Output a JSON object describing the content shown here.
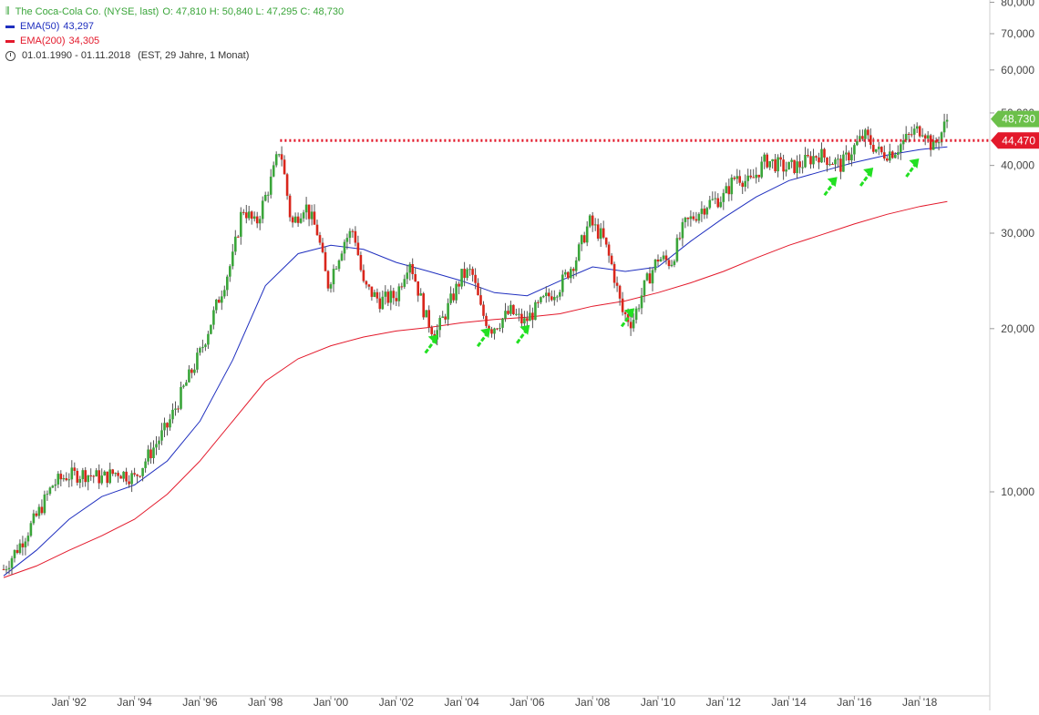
{
  "legend": {
    "title": "The Coca-Cola Co. (NYSE, last)",
    "ohlc": "O: 47,810  H: 50,840  L: 47,295  C: 48,730",
    "ema50_label": "EMA(50)",
    "ema50_value": "43,297",
    "ema200_label": "EMA(200)",
    "ema200_value": "34,305",
    "range": "01.01.1990 - 01.11.2018",
    "range_note": "(EST, 29 Jahre, 1 Monat)"
  },
  "colors": {
    "up": "#3aa53a",
    "down": "#d9261c",
    "ema50": "#1f2fbf",
    "ema200": "#e3192b",
    "resistance": "#e3192b",
    "arrow": "#22e022",
    "badge_price": "#6cc04a",
    "badge_level": "#e3192b"
  },
  "badges": {
    "price": "48,730",
    "level": "44,470"
  },
  "chart_data": {
    "type": "candlestick",
    "title": "The Coca-Cola Co. (NYSE, last)",
    "y_scale": "log",
    "ylim": [
      6.9,
      83
    ],
    "y_ticks": [
      10000,
      20000,
      30000,
      40000,
      50000,
      60000,
      70000,
      80000
    ],
    "y_tick_labels": [
      "10,000",
      "20,000",
      "30,000",
      "40,000",
      "50,000",
      "60,000",
      "70,000",
      "80,000"
    ],
    "x_range": [
      "1990-01",
      "2018-11"
    ],
    "x_tick_labels": [
      "Jan '92",
      "Jan '94",
      "Jan '96",
      "Jan '98",
      "Jan '00",
      "Jan '02",
      "Jan '04",
      "Jan '06",
      "Jan '08",
      "Jan '10",
      "Jan '12",
      "Jan '14",
      "Jan '16",
      "Jan '18"
    ],
    "x_tick_years": [
      1992,
      1994,
      1996,
      1998,
      2000,
      2002,
      2004,
      2006,
      2008,
      2010,
      2012,
      2014,
      2016,
      2018
    ],
    "price_path": [
      [
        1990.0,
        7.2
      ],
      [
        1990.5,
        8.0
      ],
      [
        1991.0,
        9.0
      ],
      [
        1991.5,
        10.3
      ],
      [
        1991.9,
        10.7
      ],
      [
        1992.5,
        10.8
      ],
      [
        1993.0,
        10.6
      ],
      [
        1993.5,
        10.9
      ],
      [
        1994.0,
        10.6
      ],
      [
        1994.4,
        11.6
      ],
      [
        1995.0,
        13.2
      ],
      [
        1995.5,
        15.5
      ],
      [
        1996.0,
        18.0
      ],
      [
        1996.5,
        22.0
      ],
      [
        1997.0,
        27.0
      ],
      [
        1997.3,
        33.5
      ],
      [
        1997.7,
        31.0
      ],
      [
        1998.2,
        38.0
      ],
      [
        1998.45,
        43.5
      ],
      [
        1998.8,
        31.0
      ],
      [
        1999.2,
        34.0
      ],
      [
        1999.6,
        30.0
      ],
      [
        1999.9,
        24.0
      ],
      [
        2000.4,
        29.0
      ],
      [
        2000.7,
        30.5
      ],
      [
        2001.0,
        24.0
      ],
      [
        2001.5,
        22.5
      ],
      [
        2002.0,
        23.0
      ],
      [
        2002.4,
        27.0
      ],
      [
        2002.9,
        21.0
      ],
      [
        2003.2,
        19.5
      ],
      [
        2003.6,
        22.0
      ],
      [
        2004.0,
        25.0
      ],
      [
        2004.3,
        25.5
      ],
      [
        2004.6,
        21.5
      ],
      [
        2004.9,
        20.0
      ],
      [
        2005.5,
        21.5
      ],
      [
        2005.9,
        20.5
      ],
      [
        2006.5,
        22.5
      ],
      [
        2007.0,
        24.0
      ],
      [
        2007.5,
        27.0
      ],
      [
        2007.9,
        31.5
      ],
      [
        2008.3,
        29.5
      ],
      [
        2008.6,
        26.0
      ],
      [
        2008.9,
        21.5
      ],
      [
        2009.2,
        20.5
      ],
      [
        2009.6,
        24.0
      ],
      [
        2010.0,
        27.0
      ],
      [
        2010.4,
        26.5
      ],
      [
        2010.8,
        31.0
      ],
      [
        2011.5,
        34.0
      ],
      [
        2012.0,
        35.0
      ],
      [
        2012.4,
        38.5
      ],
      [
        2012.8,
        37.0
      ],
      [
        2013.3,
        41.0
      ],
      [
        2013.9,
        39.5
      ],
      [
        2014.3,
        40.0
      ],
      [
        2014.9,
        42.0
      ],
      [
        2015.6,
        40.0
      ],
      [
        2015.9,
        42.5
      ],
      [
        2016.3,
        45.5
      ],
      [
        2016.8,
        42.0
      ],
      [
        2017.2,
        42.5
      ],
      [
        2017.8,
        46.0
      ],
      [
        2018.1,
        47.0
      ],
      [
        2018.4,
        43.0
      ],
      [
        2018.7,
        46.5
      ],
      [
        2018.84,
        48.73
      ]
    ],
    "series": [
      {
        "name": "EMA(50)",
        "points": [
          [
            1990.0,
            7.0
          ],
          [
            1991.0,
            7.8
          ],
          [
            1992.0,
            8.9
          ],
          [
            1993.0,
            9.8
          ],
          [
            1994.0,
            10.3
          ],
          [
            1995.0,
            11.4
          ],
          [
            1996.0,
            13.5
          ],
          [
            1997.0,
            17.5
          ],
          [
            1998.0,
            24.0
          ],
          [
            1999.0,
            27.5
          ],
          [
            2000.0,
            28.5
          ],
          [
            2001.0,
            28.0
          ],
          [
            2002.0,
            26.5
          ],
          [
            2003.0,
            25.5
          ],
          [
            2004.0,
            24.5
          ],
          [
            2005.0,
            23.3
          ],
          [
            2006.0,
            23.0
          ],
          [
            2007.0,
            24.5
          ],
          [
            2008.0,
            26.0
          ],
          [
            2009.0,
            25.5
          ],
          [
            2010.0,
            26.0
          ],
          [
            2011.0,
            29.0
          ],
          [
            2012.0,
            32.0
          ],
          [
            2013.0,
            35.0
          ],
          [
            2014.0,
            37.5
          ],
          [
            2015.0,
            39.0
          ],
          [
            2016.0,
            40.5
          ],
          [
            2017.0,
            41.8
          ],
          [
            2018.0,
            42.8
          ],
          [
            2018.84,
            43.297
          ]
        ]
      },
      {
        "name": "EMA(200)",
        "points": [
          [
            1990.0,
            6.95
          ],
          [
            1991.0,
            7.3
          ],
          [
            1992.0,
            7.8
          ],
          [
            1993.0,
            8.3
          ],
          [
            1994.0,
            8.9
          ],
          [
            1995.0,
            9.9
          ],
          [
            1996.0,
            11.4
          ],
          [
            1997.0,
            13.5
          ],
          [
            1998.0,
            16.0
          ],
          [
            1999.0,
            17.6
          ],
          [
            2000.0,
            18.6
          ],
          [
            2001.0,
            19.3
          ],
          [
            2002.0,
            19.8
          ],
          [
            2003.0,
            20.1
          ],
          [
            2004.0,
            20.5
          ],
          [
            2005.0,
            20.8
          ],
          [
            2006.0,
            21.0
          ],
          [
            2007.0,
            21.3
          ],
          [
            2008.0,
            22.0
          ],
          [
            2009.0,
            22.5
          ],
          [
            2010.0,
            23.3
          ],
          [
            2011.0,
            24.3
          ],
          [
            2012.0,
            25.5
          ],
          [
            2013.0,
            27.0
          ],
          [
            2014.0,
            28.5
          ],
          [
            2015.0,
            29.8
          ],
          [
            2016.0,
            31.2
          ],
          [
            2017.0,
            32.5
          ],
          [
            2018.0,
            33.6
          ],
          [
            2018.84,
            34.305
          ]
        ]
      }
    ],
    "resistance_level": 44.47,
    "resistance_from": 1998.45,
    "last_price": 48.73,
    "support_arrows": [
      2003.0,
      2004.6,
      2005.8,
      2009.0,
      2015.2,
      2016.3,
      2017.7
    ],
    "grid": false,
    "legend_position": "top-left"
  }
}
